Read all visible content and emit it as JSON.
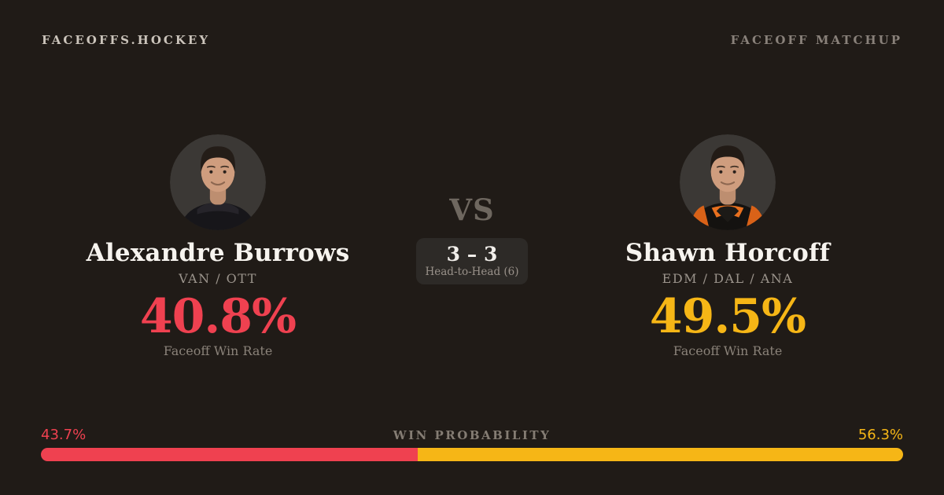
{
  "header": {
    "brand": "FACEOFFS.HOCKEY",
    "label": "FACEOFF MATCHUP"
  },
  "players": {
    "left": {
      "name": "Alexandre Burrows",
      "teams": "VAN / OTT",
      "win_rate": "40.8%",
      "win_rate_label": "Faceoff Win Rate",
      "accent": "#ef4150"
    },
    "right": {
      "name": "Shawn Horcoff",
      "teams": "EDM / DAL / ANA",
      "win_rate": "49.5%",
      "win_rate_label": "Faceoff Win Rate",
      "accent": "#f6b616"
    }
  },
  "versus": {
    "label": "VS",
    "score": "3 – 3",
    "sub": "Head-to-Head (6)"
  },
  "win_probability": {
    "title": "WIN PROBABILITY",
    "left_pct": "43.7%",
    "right_pct": "56.3%",
    "left_value": 43.7,
    "right_value": 56.3,
    "left_color": "#ef4150",
    "right_color": "#f6b616"
  },
  "colors": {
    "background": "#201b17",
    "panel": "#2d2a27",
    "text_primary": "#f7f4ef",
    "text_muted": "#8a8279"
  }
}
